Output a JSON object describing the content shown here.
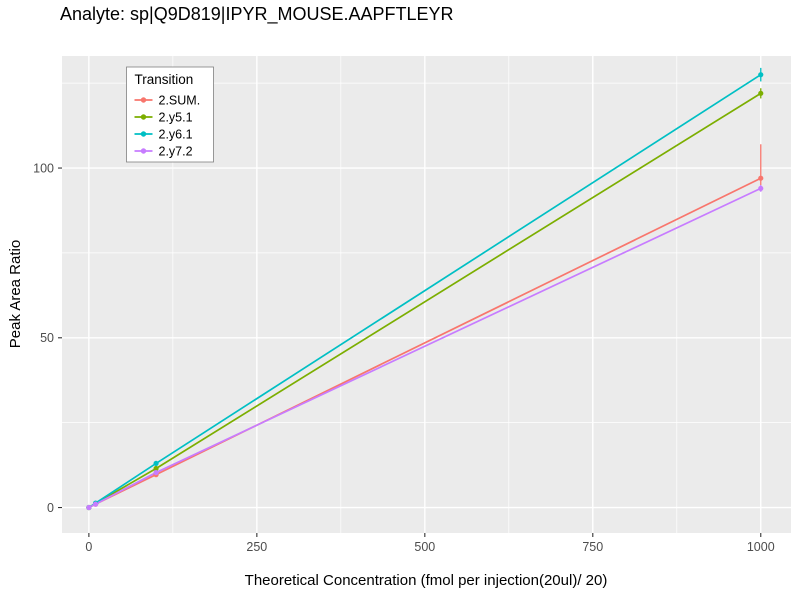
{
  "chart_data": {
    "type": "line",
    "title": "Analyte: sp|Q9D819|IPYR_MOUSE.AAPFTLEYR",
    "xlabel": "Theoretical Concentration (fmol per injection(20ul)/ 20)",
    "ylabel": "Peak Area Ratio",
    "xlim": [
      -40,
      1045
    ],
    "ylim": [
      -7.5,
      133
    ],
    "x_ticks": [
      0,
      250,
      500,
      750,
      1000
    ],
    "y_ticks": [
      0,
      50,
      100
    ],
    "grid": true,
    "panel_background": "#EBEBEB",
    "grid_color": "#FFFFFF",
    "tick_label_color": "#4D4D4D",
    "legend_title": "Transition",
    "legend_position": "inside top-left",
    "series": [
      {
        "name": "2.SUM.",
        "color": "#F8766D",
        "x": [
          0,
          10,
          100,
          1000
        ],
        "y": [
          0,
          1,
          9.7,
          97
        ],
        "err_low": [
          0,
          0,
          0,
          2
        ],
        "err_high": [
          0,
          0,
          0,
          10
        ]
      },
      {
        "name": "2.y5.1",
        "color": "#7CAE00",
        "x": [
          0,
          10,
          100,
          1000
        ],
        "y": [
          0,
          1.2,
          11.5,
          122
        ],
        "err_low": [
          0,
          0,
          0,
          1.5
        ],
        "err_high": [
          0,
          0,
          0,
          1.5
        ]
      },
      {
        "name": "2.y6.1",
        "color": "#00BFC4",
        "x": [
          0,
          10,
          100,
          1000
        ],
        "y": [
          0,
          1.3,
          13,
          127.5
        ],
        "err_low": [
          0,
          0,
          0,
          2
        ],
        "err_high": [
          0,
          0,
          0,
          2
        ]
      },
      {
        "name": "2.y7.2",
        "color": "#C77CFF",
        "x": [
          0,
          10,
          100,
          1000
        ],
        "y": [
          0,
          1,
          10.3,
          94
        ],
        "err_low": [
          0,
          0,
          0,
          1
        ],
        "err_high": [
          0,
          0,
          0,
          1
        ]
      }
    ]
  }
}
